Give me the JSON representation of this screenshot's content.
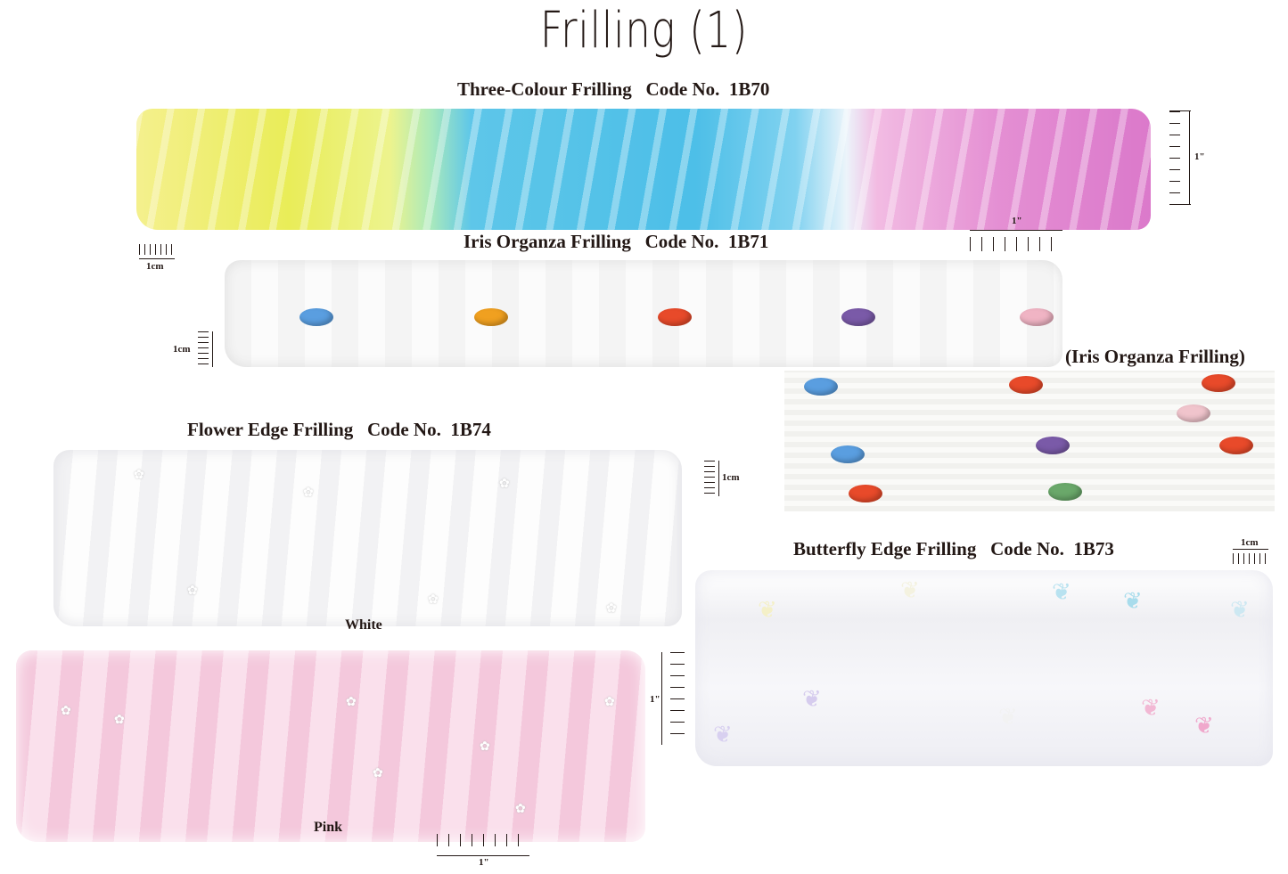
{
  "page_title": "Frilling (1)",
  "products": [
    {
      "name": "Three-Colour Frilling",
      "code_label": "Code No.",
      "code": "1B70",
      "heading": "Three-Colour Frilling   Code No.  1B70"
    },
    {
      "name": "Iris Organza Frilling",
      "code_label": "Code No.",
      "code": "1B71",
      "heading": "Iris Organza Frilling   Code No.  1B71",
      "closeup_caption": "(Iris Organza Frilling)"
    },
    {
      "name": "Flower Edge Frilling",
      "code_label": "Code No.",
      "code": "1B74",
      "heading": "Flower Edge Frilling   Code No.  1B74",
      "variants": [
        "White",
        "Pink"
      ]
    },
    {
      "name": "Butterfly Edge Frilling",
      "code_label": "Code No.",
      "code": "1B73",
      "heading": "Butterfly Edge Frilling   Code No.  1B73"
    }
  ],
  "scales": {
    "inch": "1\"",
    "cm": "1cm"
  },
  "colors": {
    "text": "#231815",
    "bead_blue": "#5a9ee0",
    "bead_orange": "#f0a020",
    "bead_red": "#e84a2a",
    "bead_purple": "#7a5aa8",
    "bead_pink": "#f0b4c4"
  }
}
